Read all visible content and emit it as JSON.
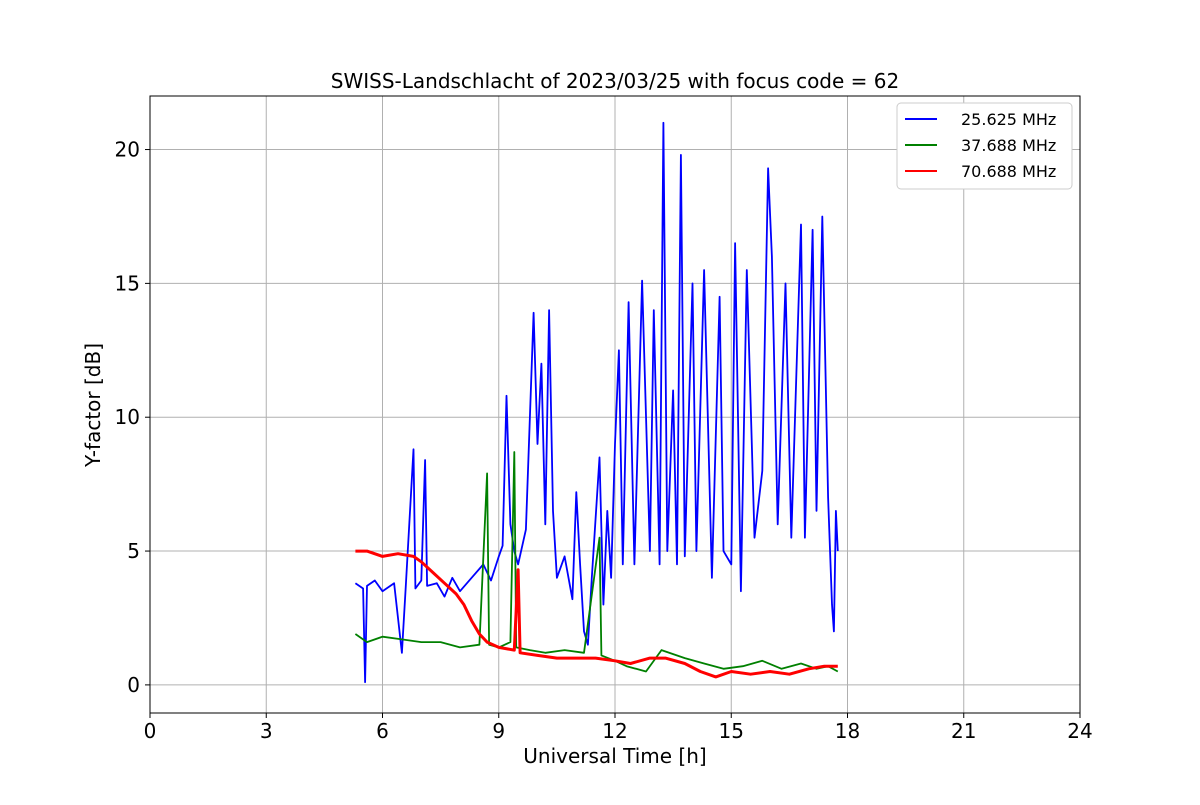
{
  "chart_data": {
    "type": "line",
    "title": "SWISS-Landschlacht of 2023/03/25 with focus code = 62",
    "xlabel": "Universal Time [h]",
    "ylabel": "Y-factor [dB]",
    "xlim": [
      0,
      24
    ],
    "ylim": [
      -1.05,
      22
    ],
    "xticks": [
      0,
      3,
      6,
      9,
      12,
      15,
      18,
      21,
      24
    ],
    "yticks": [
      0,
      5,
      10,
      15,
      20
    ],
    "grid": true,
    "legend_position": "top-right",
    "series": [
      {
        "name": "25.625 MHz",
        "color": "#0000ff",
        "points": [
          [
            5.3,
            3.8
          ],
          [
            5.5,
            3.6
          ],
          [
            5.55,
            0.1
          ],
          [
            5.6,
            3.7
          ],
          [
            5.8,
            3.9
          ],
          [
            6.0,
            3.5
          ],
          [
            6.3,
            3.8
          ],
          [
            6.5,
            1.2
          ],
          [
            6.6,
            3.7
          ],
          [
            6.8,
            8.8
          ],
          [
            6.85,
            3.6
          ],
          [
            7.0,
            3.9
          ],
          [
            7.1,
            8.4
          ],
          [
            7.15,
            3.7
          ],
          [
            7.4,
            3.8
          ],
          [
            7.6,
            3.3
          ],
          [
            7.8,
            4.0
          ],
          [
            8.0,
            3.5
          ],
          [
            8.3,
            4.0
          ],
          [
            8.6,
            4.5
          ],
          [
            8.8,
            3.9
          ],
          [
            9.0,
            4.8
          ],
          [
            9.1,
            5.2
          ],
          [
            9.2,
            10.8
          ],
          [
            9.3,
            6.0
          ],
          [
            9.4,
            5.0
          ],
          [
            9.5,
            4.5
          ],
          [
            9.7,
            5.8
          ],
          [
            9.9,
            13.9
          ],
          [
            10.0,
            9.0
          ],
          [
            10.1,
            12.0
          ],
          [
            10.2,
            6.0
          ],
          [
            10.3,
            14.0
          ],
          [
            10.4,
            6.5
          ],
          [
            10.5,
            4.0
          ],
          [
            10.7,
            4.8
          ],
          [
            10.9,
            3.2
          ],
          [
            11.0,
            7.2
          ],
          [
            11.1,
            4.5
          ],
          [
            11.2,
            2.0
          ],
          [
            11.3,
            1.5
          ],
          [
            11.4,
            4.0
          ],
          [
            11.6,
            8.5
          ],
          [
            11.7,
            3.0
          ],
          [
            11.8,
            6.5
          ],
          [
            11.9,
            4.0
          ],
          [
            12.0,
            9.0
          ],
          [
            12.1,
            12.5
          ],
          [
            12.2,
            4.5
          ],
          [
            12.35,
            14.3
          ],
          [
            12.5,
            4.5
          ],
          [
            12.7,
            15.1
          ],
          [
            12.9,
            5.0
          ],
          [
            13.0,
            14.0
          ],
          [
            13.15,
            4.5
          ],
          [
            13.25,
            21.0
          ],
          [
            13.35,
            5.0
          ],
          [
            13.5,
            11.0
          ],
          [
            13.6,
            4.5
          ],
          [
            13.7,
            19.8
          ],
          [
            13.8,
            4.8
          ],
          [
            14.0,
            15.0
          ],
          [
            14.1,
            5.0
          ],
          [
            14.3,
            15.5
          ],
          [
            14.5,
            4.0
          ],
          [
            14.7,
            14.5
          ],
          [
            14.8,
            5.0
          ],
          [
            15.0,
            4.5
          ],
          [
            15.1,
            16.5
          ],
          [
            15.25,
            3.5
          ],
          [
            15.4,
            15.5
          ],
          [
            15.6,
            5.5
          ],
          [
            15.8,
            8.0
          ],
          [
            15.95,
            19.3
          ],
          [
            16.05,
            16.0
          ],
          [
            16.2,
            6.0
          ],
          [
            16.4,
            15.0
          ],
          [
            16.55,
            5.5
          ],
          [
            16.8,
            17.2
          ],
          [
            16.9,
            5.5
          ],
          [
            17.1,
            17.0
          ],
          [
            17.2,
            6.5
          ],
          [
            17.35,
            17.5
          ],
          [
            17.5,
            7.0
          ],
          [
            17.6,
            3.0
          ],
          [
            17.65,
            2.0
          ],
          [
            17.7,
            6.5
          ],
          [
            17.75,
            5.0
          ]
        ]
      },
      {
        "name": "37.688 MHz",
        "color": "#008000",
        "points": [
          [
            5.3,
            1.9
          ],
          [
            5.6,
            1.6
          ],
          [
            6.0,
            1.8
          ],
          [
            6.5,
            1.7
          ],
          [
            7.0,
            1.6
          ],
          [
            7.5,
            1.6
          ],
          [
            8.0,
            1.4
          ],
          [
            8.5,
            1.5
          ],
          [
            8.7,
            7.9
          ],
          [
            8.75,
            1.5
          ],
          [
            9.0,
            1.4
          ],
          [
            9.3,
            1.6
          ],
          [
            9.4,
            8.7
          ],
          [
            9.45,
            1.4
          ],
          [
            9.8,
            1.3
          ],
          [
            10.2,
            1.2
          ],
          [
            10.7,
            1.3
          ],
          [
            11.2,
            1.2
          ],
          [
            11.6,
            5.5
          ],
          [
            11.65,
            1.1
          ],
          [
            12.0,
            0.9
          ],
          [
            12.3,
            0.7
          ],
          [
            12.8,
            0.5
          ],
          [
            13.2,
            1.3
          ],
          [
            13.8,
            1.0
          ],
          [
            14.3,
            0.8
          ],
          [
            14.8,
            0.6
          ],
          [
            15.3,
            0.7
          ],
          [
            15.8,
            0.9
          ],
          [
            16.3,
            0.6
          ],
          [
            16.8,
            0.8
          ],
          [
            17.2,
            0.6
          ],
          [
            17.5,
            0.7
          ],
          [
            17.75,
            0.5
          ]
        ]
      },
      {
        "name": "70.688 MHz",
        "color": "#ff0000",
        "points": [
          [
            5.3,
            5.0
          ],
          [
            5.6,
            5.0
          ],
          [
            6.0,
            4.8
          ],
          [
            6.4,
            4.9
          ],
          [
            6.8,
            4.8
          ],
          [
            7.0,
            4.6
          ],
          [
            7.3,
            4.2
          ],
          [
            7.6,
            3.8
          ],
          [
            7.9,
            3.4
          ],
          [
            8.1,
            3.0
          ],
          [
            8.3,
            2.4
          ],
          [
            8.5,
            1.9
          ],
          [
            8.7,
            1.6
          ],
          [
            9.0,
            1.4
          ],
          [
            9.4,
            1.3
          ],
          [
            9.5,
            4.3
          ],
          [
            9.55,
            1.2
          ],
          [
            10.0,
            1.1
          ],
          [
            10.5,
            1.0
          ],
          [
            11.0,
            1.0
          ],
          [
            11.5,
            1.0
          ],
          [
            12.0,
            0.9
          ],
          [
            12.4,
            0.8
          ],
          [
            12.9,
            1.0
          ],
          [
            13.3,
            1.0
          ],
          [
            13.8,
            0.8
          ],
          [
            14.2,
            0.5
          ],
          [
            14.6,
            0.3
          ],
          [
            15.0,
            0.5
          ],
          [
            15.5,
            0.4
          ],
          [
            16.0,
            0.5
          ],
          [
            16.5,
            0.4
          ],
          [
            17.0,
            0.6
          ],
          [
            17.4,
            0.7
          ],
          [
            17.75,
            0.7
          ]
        ]
      }
    ]
  }
}
